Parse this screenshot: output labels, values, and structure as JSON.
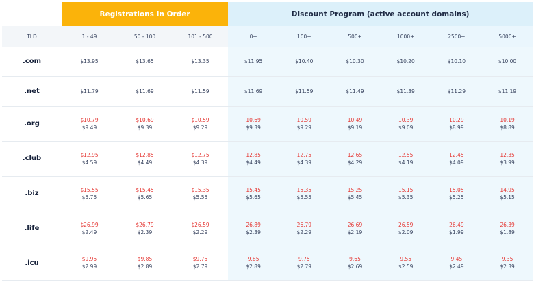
{
  "header": {
    "registrations_label": "Registrations In Order",
    "discount_label": "Discount Program (active account domains)"
  },
  "columns": {
    "tld": "TLD",
    "registration": [
      "1 - 49",
      "50 - 100",
      "101 - 500"
    ],
    "discount": [
      "0+",
      "100+",
      "500+",
      "1000+",
      "2500+",
      "5000+"
    ]
  },
  "rows": [
    {
      "tld": ".com",
      "row_height": 43,
      "prices": [
        {
          "now": "$13.95"
        },
        {
          "now": "$13.65"
        },
        {
          "now": "$13.35"
        },
        {
          "now": "$11.95"
        },
        {
          "now": "$10.40"
        },
        {
          "now": "$10.30"
        },
        {
          "now": "$10.20"
        },
        {
          "now": "$10.10"
        },
        {
          "now": "$10.00"
        }
      ]
    },
    {
      "tld": ".net",
      "row_height": 44,
      "prices": [
        {
          "now": "$11.79"
        },
        {
          "now": "$11.69"
        },
        {
          "now": "$11.59"
        },
        {
          "now": "$11.69"
        },
        {
          "now": "$11.59"
        },
        {
          "now": "$11.49"
        },
        {
          "now": "$11.39"
        },
        {
          "now": "$11.29"
        },
        {
          "now": "$11.19"
        }
      ]
    },
    {
      "tld": ".org",
      "row_height": 51,
      "prices": [
        {
          "was": "$10.79",
          "now": "$9.49"
        },
        {
          "was": "$10.69",
          "now": "$9.39"
        },
        {
          "was": "$10.59",
          "now": "$9.29"
        },
        {
          "was": "10.69",
          "now": "$9.39"
        },
        {
          "was": "10.59",
          "now": "$9.29"
        },
        {
          "was": "10.49",
          "now": "$9.19"
        },
        {
          "was": "10.39",
          "now": "$9.09"
        },
        {
          "was": "10.29",
          "now": "$8.99"
        },
        {
          "was": "10.19",
          "now": "$8.89"
        }
      ]
    },
    {
      "tld": ".club",
      "row_height": 51,
      "prices": [
        {
          "was": "$12.95",
          "now": "$4.59"
        },
        {
          "was": "$12.85",
          "now": "$4.49"
        },
        {
          "was": "$12.75",
          "now": "$4.39"
        },
        {
          "was": "12.85",
          "now": "$4.49"
        },
        {
          "was": "12.75",
          "now": "$4.39"
        },
        {
          "was": "12.65",
          "now": "$4.29"
        },
        {
          "was": "12.55",
          "now": "$4.19"
        },
        {
          "was": "12.45",
          "now": "$4.09"
        },
        {
          "was": "12.35",
          "now": "$3.99"
        }
      ]
    },
    {
      "tld": ".biz",
      "row_height": 51,
      "prices": [
        {
          "was": "$15.55",
          "now": "$5.75"
        },
        {
          "was": "$15.45",
          "now": "$5.65"
        },
        {
          "was": "$15.35",
          "now": "$5.55"
        },
        {
          "was": "15.45",
          "now": "$5.65"
        },
        {
          "was": "15.35",
          "now": "$5.55"
        },
        {
          "was": "15.25",
          "now": "$5.45"
        },
        {
          "was": "15.15",
          "now": "$5.35"
        },
        {
          "was": "15.05",
          "now": "$5.25"
        },
        {
          "was": "14.95",
          "now": "$5.15"
        }
      ]
    },
    {
      "tld": ".life",
      "row_height": 51,
      "prices": [
        {
          "was": "$26.99",
          "now": "$2.49"
        },
        {
          "was": "$26.79",
          "now": "$2.39"
        },
        {
          "was": "$26.59",
          "now": "$2.29"
        },
        {
          "was": "26.89",
          "now": "$2.39"
        },
        {
          "was": "26.79",
          "now": "$2.29"
        },
        {
          "was": "26.69",
          "now": "$2.19"
        },
        {
          "was": "26.59",
          "now": "$2.09"
        },
        {
          "was": "26.49",
          "now": "$1.99"
        },
        {
          "was": "26.39",
          "now": "$1.89"
        }
      ]
    },
    {
      "tld": ".icu",
      "row_height": 50,
      "prices": [
        {
          "was": "$9.95",
          "now": "$2.99"
        },
        {
          "was": "$9.85",
          "now": "$2.89"
        },
        {
          "was": "$9.75",
          "now": "$2.79"
        },
        {
          "was": "9.85",
          "now": "$2.89"
        },
        {
          "was": "9.75",
          "now": "$2.79"
        },
        {
          "was": "9.65",
          "now": "$2.69"
        },
        {
          "was": "9.55",
          "now": "$2.59"
        },
        {
          "was": "9.45",
          "now": "$2.49"
        },
        {
          "was": "9.35",
          "now": "$2.39"
        }
      ]
    }
  ]
}
